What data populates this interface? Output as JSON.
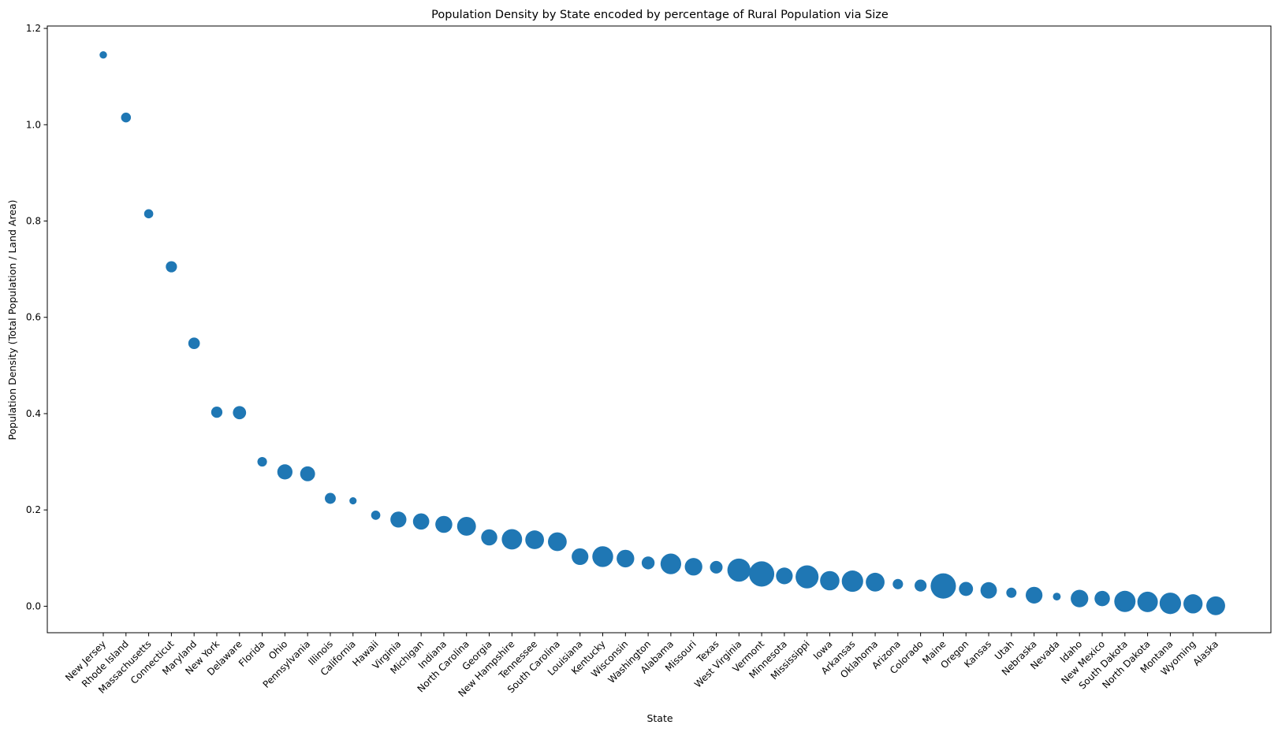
{
  "chart_data": {
    "type": "scatter",
    "title": "Population Density by State encoded by percentage of Rural Population via Size",
    "xlabel": "State",
    "ylabel": "Population Density (Total Population / Land Area)",
    "ylim": [
      -0.055,
      1.205
    ],
    "yticks": [
      0.0,
      0.2,
      0.4,
      0.6,
      0.8,
      1.0,
      1.2
    ],
    "ytick_labels": [
      "0.0",
      "0.2",
      "0.4",
      "0.6",
      "0.8",
      "1.0",
      "1.2"
    ],
    "grid": false,
    "legend": "none",
    "marker_color": "#1f77b4",
    "size_encoding": "percentage of Rural Population",
    "points": [
      {
        "state": "New Jersey",
        "density": 1.145,
        "rural_pct": 5.3
      },
      {
        "state": "Rhode Island",
        "density": 1.015,
        "rural_pct": 9.3
      },
      {
        "state": "Massachusetts",
        "density": 0.815,
        "rural_pct": 8.0
      },
      {
        "state": "Connecticut",
        "density": 0.705,
        "rural_pct": 12.0
      },
      {
        "state": "Maryland",
        "density": 0.546,
        "rural_pct": 12.8
      },
      {
        "state": "New York",
        "density": 0.403,
        "rural_pct": 12.1
      },
      {
        "state": "Delaware",
        "density": 0.402,
        "rural_pct": 16.7
      },
      {
        "state": "Florida",
        "density": 0.3,
        "rural_pct": 8.8
      },
      {
        "state": "Ohio",
        "density": 0.279,
        "rural_pct": 22.1
      },
      {
        "state": "Pennsylvania",
        "density": 0.275,
        "rural_pct": 21.3
      },
      {
        "state": "Illinois",
        "density": 0.224,
        "rural_pct": 11.5
      },
      {
        "state": "California",
        "density": 0.219,
        "rural_pct": 5.0
      },
      {
        "state": "Hawaii",
        "density": 0.189,
        "rural_pct": 8.1
      },
      {
        "state": "Virginia",
        "density": 0.18,
        "rural_pct": 24.5
      },
      {
        "state": "Michigan",
        "density": 0.176,
        "rural_pct": 25.4
      },
      {
        "state": "Indiana",
        "density": 0.17,
        "rural_pct": 27.6
      },
      {
        "state": "North Carolina",
        "density": 0.166,
        "rural_pct": 33.9
      },
      {
        "state": "Georgia",
        "density": 0.143,
        "rural_pct": 24.9
      },
      {
        "state": "New Hampshire",
        "density": 0.139,
        "rural_pct": 39.7
      },
      {
        "state": "Tennessee",
        "density": 0.138,
        "rural_pct": 33.6
      },
      {
        "state": "South Carolina",
        "density": 0.134,
        "rural_pct": 33.7
      },
      {
        "state": "Louisiana",
        "density": 0.103,
        "rural_pct": 26.8
      },
      {
        "state": "Kentucky",
        "density": 0.103,
        "rural_pct": 41.6
      },
      {
        "state": "Wisconsin",
        "density": 0.099,
        "rural_pct": 29.8
      },
      {
        "state": "Washington",
        "density": 0.09,
        "rural_pct": 16.0
      },
      {
        "state": "Alabama",
        "density": 0.088,
        "rural_pct": 40.9
      },
      {
        "state": "Missouri",
        "density": 0.082,
        "rural_pct": 29.6
      },
      {
        "state": "Texas",
        "density": 0.081,
        "rural_pct": 15.3
      },
      {
        "state": "West Virginia",
        "density": 0.075,
        "rural_pct": 51.3
      },
      {
        "state": "Vermont",
        "density": 0.067,
        "rural_pct": 61.1
      },
      {
        "state": "Minnesota",
        "density": 0.063,
        "rural_pct": 26.7
      },
      {
        "state": "Mississippi",
        "density": 0.061,
        "rural_pct": 50.6
      },
      {
        "state": "Iowa",
        "density": 0.053,
        "rural_pct": 36.0
      },
      {
        "state": "Arkansas",
        "density": 0.052,
        "rural_pct": 43.8
      },
      {
        "state": "Oklahoma",
        "density": 0.05,
        "rural_pct": 33.8
      },
      {
        "state": "Arizona",
        "density": 0.046,
        "rural_pct": 10.2
      },
      {
        "state": "Colorado",
        "density": 0.043,
        "rural_pct": 13.8
      },
      {
        "state": "Maine",
        "density": 0.042,
        "rural_pct": 61.3
      },
      {
        "state": "Oregon",
        "density": 0.036,
        "rural_pct": 19.0
      },
      {
        "state": "Kansas",
        "density": 0.033,
        "rural_pct": 25.8
      },
      {
        "state": "Utah",
        "density": 0.028,
        "rural_pct": 10.0
      },
      {
        "state": "Nebraska",
        "density": 0.023,
        "rural_pct": 26.9
      },
      {
        "state": "Nevada",
        "density": 0.02,
        "rural_pct": 5.8
      },
      {
        "state": "Idaho",
        "density": 0.016,
        "rural_pct": 29.4
      },
      {
        "state": "New Mexico",
        "density": 0.016,
        "rural_pct": 22.6
      },
      {
        "state": "South Dakota",
        "density": 0.01,
        "rural_pct": 43.3
      },
      {
        "state": "North Dakota",
        "density": 0.009,
        "rural_pct": 40.1
      },
      {
        "state": "Montana",
        "density": 0.006,
        "rural_pct": 44.1
      },
      {
        "state": "Wyoming",
        "density": 0.005,
        "rural_pct": 35.2
      },
      {
        "state": "Alaska",
        "density": 0.001,
        "rural_pct": 34.0
      }
    ]
  }
}
